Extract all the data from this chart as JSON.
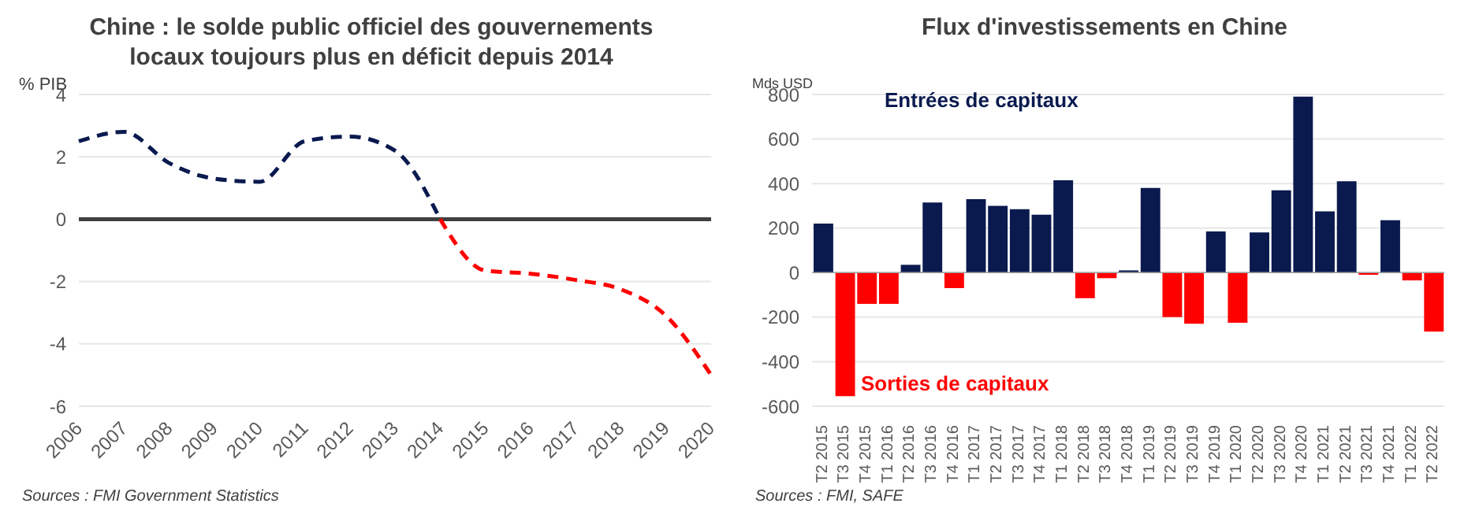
{
  "chart_data": [
    {
      "type": "line",
      "title": "Chine : le solde public officiel des gouvernements locaux toujours plus en déficit depuis 2014",
      "ylabel": "% PIB",
      "categories": [
        "2006",
        "2007",
        "2008",
        "2009",
        "2010",
        "2011",
        "2012",
        "2013",
        "2014",
        "2015",
        "2016",
        "2017",
        "2018",
        "2019",
        "2020"
      ],
      "series": [
        {
          "color": "#0a1a4f",
          "values": [
            2.5,
            2.8,
            1.8,
            1.3,
            1.2,
            2.5,
            2.65,
            2.2,
            0,
            null,
            null,
            null,
            null,
            null,
            null
          ]
        },
        {
          "color": "#ff0000",
          "values": [
            null,
            null,
            null,
            null,
            null,
            null,
            null,
            null,
            0,
            -1.65,
            -1.75,
            -1.95,
            -2.25,
            -3.1,
            -5.0
          ]
        }
      ],
      "ylim": [
        -6,
        4
      ],
      "yticks": [
        -6,
        -4,
        -2,
        0,
        2,
        4
      ],
      "grid": "y",
      "marker": "none",
      "line_style": "dashed",
      "ref_lines": [
        {
          "axis": "y",
          "value": 0,
          "color": "#404040"
        }
      ],
      "annotations": [
        "Sources : FMI Government Statistics"
      ]
    },
    {
      "type": "bar",
      "title": "Flux d'investissements en Chine",
      "ylabel": "Mds USD",
      "categories": [
        "T2 2015",
        "T3 2015",
        "T4 2015",
        "T1 2016",
        "T2 2016",
        "T3 2016",
        "T4 2016",
        "T1 2017",
        "T2 2017",
        "T3 2017",
        "T4 2017",
        "T1 2018",
        "T2 2018",
        "T3 2018",
        "T4 2018",
        "T1 2019",
        "T2 2019",
        "T3 2019",
        "T4 2019",
        "T1 2020",
        "T2 2020",
        "T3 2020",
        "T4 2020",
        "T1 2021",
        "T2 2021",
        "T3 2021",
        "T4 2021",
        "T1 2022",
        "T2 2022"
      ],
      "values": [
        220,
        -555,
        -140,
        -140,
        35,
        315,
        -70,
        330,
        300,
        285,
        260,
        415,
        -115,
        -25,
        10,
        380,
        -200,
        -230,
        185,
        -225,
        180,
        370,
        790,
        275,
        410,
        -10,
        235,
        -35,
        -265
      ],
      "colors": [
        "#0a1a4f",
        "#ff0000",
        "#ff0000",
        "#ff0000",
        "#0a1a4f",
        "#0a1a4f",
        "#ff0000",
        "#0a1a4f",
        "#0a1a4f",
        "#0a1a4f",
        "#0a1a4f",
        "#0a1a4f",
        "#ff0000",
        "#ff0000",
        "#0a1a4f",
        "#0a1a4f",
        "#ff0000",
        "#ff0000",
        "#0a1a4f",
        "#ff0000",
        "#0a1a4f",
        "#0a1a4f",
        "#0a1a4f",
        "#0a1a4f",
        "#0a1a4f",
        "#ff0000",
        "#0a1a4f",
        "#ff0000",
        "#ff0000"
      ],
      "ylim": [
        -600,
        800
      ],
      "yticks": [
        -600,
        -400,
        -200,
        0,
        200,
        400,
        600,
        800
      ],
      "grid": "y",
      "ref_lines": [
        {
          "axis": "y",
          "value": 0,
          "color": "#a0a0a0"
        }
      ],
      "annotations": [
        "Entrées de capitaux",
        "Sorties de capitaux",
        "Sources : FMI, SAFE"
      ]
    }
  ]
}
